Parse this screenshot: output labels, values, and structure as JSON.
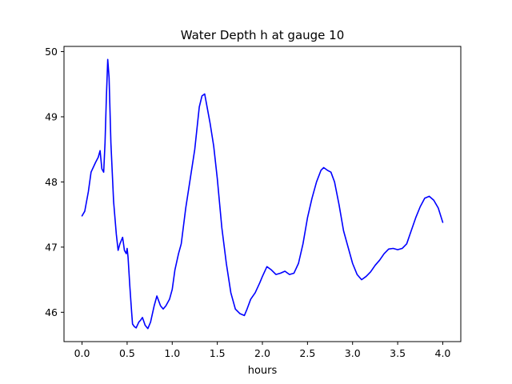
{
  "chart_data": {
    "type": "line",
    "title": "Water Depth h at gauge 10",
    "xlabel": "hours",
    "ylabel": "",
    "xlim": [
      -0.2,
      4.2
    ],
    "ylim": [
      45.55,
      50.08
    ],
    "xticks": [
      0.0,
      0.5,
      1.0,
      1.5,
      2.0,
      2.5,
      3.0,
      3.5,
      4.0
    ],
    "xtick_labels": [
      "0.0",
      "0.5",
      "1.0",
      "1.5",
      "2.0",
      "2.5",
      "3.0",
      "3.5",
      "4.0"
    ],
    "yticks": [
      46,
      47,
      48,
      49,
      50
    ],
    "ytick_labels": [
      "46",
      "47",
      "48",
      "49",
      "50"
    ],
    "grid": false,
    "legend": "none",
    "series": [
      {
        "color": "#0000ff",
        "x": [
          0.0,
          0.03,
          0.07,
          0.1,
          0.15,
          0.18,
          0.2,
          0.22,
          0.24,
          0.255,
          0.27,
          0.285,
          0.3,
          0.32,
          0.35,
          0.38,
          0.4,
          0.42,
          0.45,
          0.47,
          0.49,
          0.5,
          0.51,
          0.53,
          0.55,
          0.56,
          0.58,
          0.6,
          0.63,
          0.65,
          0.67,
          0.7,
          0.73,
          0.76,
          0.8,
          0.83,
          0.87,
          0.9,
          0.93,
          0.97,
          1.0,
          1.03,
          1.07,
          1.1,
          1.15,
          1.2,
          1.25,
          1.3,
          1.33,
          1.36,
          1.38,
          1.42,
          1.46,
          1.5,
          1.55,
          1.6,
          1.65,
          1.7,
          1.75,
          1.8,
          1.83,
          1.87,
          1.92,
          1.97,
          2.0,
          2.05,
          2.1,
          2.15,
          2.2,
          2.25,
          2.3,
          2.35,
          2.4,
          2.45,
          2.5,
          2.55,
          2.6,
          2.65,
          2.68,
          2.72,
          2.76,
          2.8,
          2.85,
          2.9,
          2.95,
          3.0,
          3.05,
          3.1,
          3.15,
          3.2,
          3.25,
          3.3,
          3.35,
          3.4,
          3.45,
          3.5,
          3.55,
          3.6,
          3.65,
          3.7,
          3.75,
          3.8,
          3.85,
          3.9,
          3.95,
          4.0
        ],
        "y": [
          47.48,
          47.55,
          47.85,
          48.15,
          48.3,
          48.38,
          48.48,
          48.2,
          48.15,
          48.6,
          49.3,
          49.88,
          49.6,
          48.6,
          47.7,
          47.2,
          46.95,
          47.05,
          47.15,
          46.95,
          46.9,
          46.98,
          46.85,
          46.4,
          46.0,
          45.82,
          45.78,
          45.76,
          45.85,
          45.88,
          45.92,
          45.8,
          45.75,
          45.85,
          46.1,
          46.25,
          46.1,
          46.05,
          46.1,
          46.2,
          46.35,
          46.65,
          46.9,
          47.05,
          47.6,
          48.05,
          48.5,
          49.15,
          49.32,
          49.35,
          49.2,
          48.9,
          48.55,
          48.05,
          47.3,
          46.75,
          46.3,
          46.05,
          45.98,
          45.95,
          46.05,
          46.2,
          46.3,
          46.45,
          46.55,
          46.7,
          46.65,
          46.58,
          46.6,
          46.63,
          46.58,
          46.6,
          46.75,
          47.05,
          47.45,
          47.75,
          48.0,
          48.18,
          48.22,
          48.18,
          48.15,
          48.0,
          47.65,
          47.25,
          47.0,
          46.75,
          46.58,
          46.5,
          46.55,
          46.62,
          46.72,
          46.8,
          46.9,
          46.97,
          46.98,
          46.96,
          46.98,
          47.05,
          47.25,
          47.45,
          47.62,
          47.75,
          47.78,
          47.72,
          47.6,
          47.38
        ]
      }
    ]
  }
}
